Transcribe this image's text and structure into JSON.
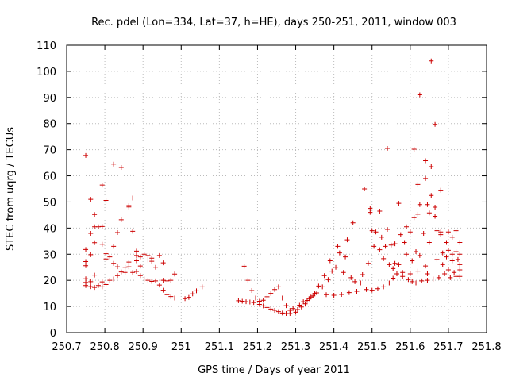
{
  "chart_data": {
    "type": "scatter",
    "title": "Rec. pdel (Lon=334, Lat=37, h=HE), days 250-251, 2011, window 003",
    "xlabel": "GPS time / Days of year 2011",
    "ylabel": "STEC from uqrg / TECUs",
    "xlim": [
      250.7,
      251.8
    ],
    "ylim": [
      0,
      110
    ],
    "x_ticks": [
      250.7,
      250.8,
      250.9,
      251.0,
      251.1,
      251.2,
      251.3,
      251.4,
      251.5,
      251.6,
      251.7,
      251.8
    ],
    "x_tick_labels": [
      "250.7",
      "250.8",
      "250.9",
      "251",
      "251.1",
      "251.2",
      "251.3",
      "251.4",
      "251.5",
      "251.6",
      "251.7",
      "251.8"
    ],
    "y_ticks": [
      0,
      10,
      20,
      30,
      40,
      50,
      60,
      70,
      80,
      90,
      100,
      110
    ],
    "y_tick_labels": [
      "0",
      "10",
      "20",
      "30",
      "40",
      "50",
      "60",
      "70",
      "80",
      "90",
      "100",
      "110"
    ],
    "grid": true,
    "marker": "plus",
    "color": "#cc0000",
    "points": [
      [
        250.75,
        67.8
      ],
      [
        250.75,
        31.8
      ],
      [
        250.75,
        27.2
      ],
      [
        250.75,
        25.6
      ],
      [
        250.75,
        20.6
      ],
      [
        250.75,
        19.2
      ],
      [
        250.75,
        18.0
      ],
      [
        250.763,
        51.0
      ],
      [
        250.763,
        38.0
      ],
      [
        250.763,
        29.8
      ],
      [
        250.763,
        19.5
      ],
      [
        250.763,
        17.6
      ],
      [
        250.773,
        45.2
      ],
      [
        250.773,
        40.5
      ],
      [
        250.773,
        34.4
      ],
      [
        250.773,
        22.0
      ],
      [
        250.773,
        17.3
      ],
      [
        250.783,
        40.5
      ],
      [
        250.783,
        18.0
      ],
      [
        250.793,
        56.5
      ],
      [
        250.793,
        40.6
      ],
      [
        250.793,
        33.8
      ],
      [
        250.793,
        19.4
      ],
      [
        250.793,
        17.5
      ],
      [
        250.803,
        50.6
      ],
      [
        250.803,
        30.2
      ],
      [
        250.803,
        28.2
      ],
      [
        250.803,
        18.4
      ],
      [
        250.813,
        29.0
      ],
      [
        250.813,
        20.0
      ],
      [
        250.823,
        64.5
      ],
      [
        250.823,
        33.0
      ],
      [
        250.823,
        26.5
      ],
      [
        250.823,
        20.5
      ],
      [
        250.833,
        38.3
      ],
      [
        250.833,
        25.2
      ],
      [
        250.833,
        21.8
      ],
      [
        250.843,
        63.2
      ],
      [
        250.843,
        43.2
      ],
      [
        250.843,
        23.2
      ],
      [
        250.853,
        25.0
      ],
      [
        250.853,
        23.0
      ],
      [
        250.863,
        48.6
      ],
      [
        250.863,
        48.1
      ],
      [
        250.863,
        27.0
      ],
      [
        250.863,
        25.2
      ],
      [
        250.873,
        51.5
      ],
      [
        250.873,
        38.8
      ],
      [
        250.873,
        23.0
      ],
      [
        250.883,
        31.2
      ],
      [
        250.883,
        29.5
      ],
      [
        250.883,
        27.5
      ],
      [
        250.883,
        23.4
      ],
      [
        250.893,
        29.0
      ],
      [
        250.893,
        25.5
      ],
      [
        250.893,
        21.8
      ],
      [
        250.903,
        30.0
      ],
      [
        250.903,
        20.5
      ],
      [
        250.913,
        29.5
      ],
      [
        250.913,
        27.8
      ],
      [
        250.913,
        20.0
      ],
      [
        250.923,
        28.5
      ],
      [
        250.923,
        27.3
      ],
      [
        250.923,
        19.6
      ],
      [
        250.933,
        25.0
      ],
      [
        250.933,
        19.8
      ],
      [
        250.943,
        29.5
      ],
      [
        250.943,
        18.2
      ],
      [
        250.953,
        26.7
      ],
      [
        250.953,
        20.0
      ],
      [
        250.953,
        16.2
      ],
      [
        250.963,
        19.8
      ],
      [
        250.963,
        14.5
      ],
      [
        250.973,
        20.0
      ],
      [
        250.973,
        13.8
      ],
      [
        250.983,
        22.4
      ],
      [
        250.983,
        13.2
      ],
      [
        251.01,
        13.0
      ],
      [
        251.02,
        13.5
      ],
      [
        251.03,
        14.8
      ],
      [
        251.04,
        16.0
      ],
      [
        251.055,
        17.5
      ],
      [
        251.15,
        12.2
      ],
      [
        251.16,
        12.0
      ],
      [
        251.17,
        11.8
      ],
      [
        251.18,
        11.7
      ],
      [
        251.19,
        11.5
      ],
      [
        251.165,
        25.4
      ],
      [
        251.175,
        20.0
      ],
      [
        251.185,
        16.1
      ],
      [
        251.195,
        13.2
      ],
      [
        251.205,
        10.8
      ],
      [
        251.205,
        12.0
      ],
      [
        251.215,
        10.2
      ],
      [
        251.215,
        12.4
      ],
      [
        251.225,
        9.6
      ],
      [
        251.225,
        13.7
      ],
      [
        251.235,
        9.0
      ],
      [
        251.235,
        15.0
      ],
      [
        251.245,
        8.5
      ],
      [
        251.245,
        16.5
      ],
      [
        251.255,
        8.0
      ],
      [
        251.255,
        17.5
      ],
      [
        251.265,
        7.5
      ],
      [
        251.265,
        13.2
      ],
      [
        251.275,
        7.3
      ],
      [
        251.275,
        10.3
      ],
      [
        251.285,
        7.3
      ],
      [
        251.285,
        8.5
      ],
      [
        251.293,
        9.2
      ],
      [
        251.3,
        7.8
      ],
      [
        251.305,
        8.8
      ],
      [
        251.31,
        10.5
      ],
      [
        251.315,
        9.8
      ],
      [
        251.32,
        11.8
      ],
      [
        251.325,
        11.0
      ],
      [
        251.33,
        12.3
      ],
      [
        251.335,
        13.0
      ],
      [
        251.34,
        13.6
      ],
      [
        251.345,
        14.0
      ],
      [
        251.35,
        15.0
      ],
      [
        251.355,
        15.2
      ],
      [
        251.36,
        17.8
      ],
      [
        251.37,
        17.5
      ],
      [
        251.375,
        21.8
      ],
      [
        251.38,
        14.5
      ],
      [
        251.385,
        20.3
      ],
      [
        251.39,
        27.5
      ],
      [
        251.395,
        23.5
      ],
      [
        251.4,
        14.3
      ],
      [
        251.405,
        25.0
      ],
      [
        251.41,
        33.0
      ],
      [
        251.415,
        30.5
      ],
      [
        251.42,
        14.6
      ],
      [
        251.425,
        23.0
      ],
      [
        251.43,
        29.0
      ],
      [
        251.435,
        35.5
      ],
      [
        251.44,
        15.3
      ],
      [
        251.445,
        21.0
      ],
      [
        251.45,
        42.0
      ],
      [
        251.455,
        19.5
      ],
      [
        251.46,
        15.8
      ],
      [
        251.47,
        19.0
      ],
      [
        251.475,
        22.2
      ],
      [
        251.48,
        55.0
      ],
      [
        251.485,
        16.5
      ],
      [
        251.49,
        26.5
      ],
      [
        251.495,
        47.5
      ],
      [
        251.495,
        46.0
      ],
      [
        251.5,
        39.0
      ],
      [
        251.5,
        16.2
      ],
      [
        251.505,
        33.0
      ],
      [
        251.51,
        38.5
      ],
      [
        251.515,
        16.8
      ],
      [
        251.52,
        31.7
      ],
      [
        251.52,
        46.5
      ],
      [
        251.525,
        36.5
      ],
      [
        251.53,
        17.5
      ],
      [
        251.53,
        28.3
      ],
      [
        251.535,
        33.0
      ],
      [
        251.54,
        70.5
      ],
      [
        251.54,
        39.5
      ],
      [
        251.545,
        19.0
      ],
      [
        251.545,
        26.0
      ],
      [
        251.55,
        33.5
      ],
      [
        251.555,
        24.5
      ],
      [
        251.555,
        20.8
      ],
      [
        251.56,
        34.0
      ],
      [
        251.56,
        26.5
      ],
      [
        251.565,
        22.5
      ],
      [
        251.57,
        26.0
      ],
      [
        251.57,
        49.5
      ],
      [
        251.575,
        37.5
      ],
      [
        251.58,
        23.0
      ],
      [
        251.58,
        21.5
      ],
      [
        251.585,
        34.5
      ],
      [
        251.59,
        40.5
      ],
      [
        251.59,
        30.0
      ],
      [
        251.595,
        20.3
      ],
      [
        251.6,
        38.5
      ],
      [
        251.6,
        22.5
      ],
      [
        251.605,
        19.5
      ],
      [
        251.605,
        27.5
      ],
      [
        251.61,
        70.2
      ],
      [
        251.61,
        44.0
      ],
      [
        251.615,
        31.0
      ],
      [
        251.615,
        19.0
      ],
      [
        251.62,
        45.3
      ],
      [
        251.62,
        56.7
      ],
      [
        251.62,
        23.5
      ],
      [
        251.625,
        91.0
      ],
      [
        251.625,
        49.0
      ],
      [
        251.625,
        29.5
      ],
      [
        251.63,
        19.8
      ],
      [
        251.635,
        38.0
      ],
      [
        251.64,
        65.8
      ],
      [
        251.64,
        59.0
      ],
      [
        251.64,
        25.5
      ],
      [
        251.645,
        49.0
      ],
      [
        251.645,
        22.5
      ],
      [
        251.645,
        20.0
      ],
      [
        251.65,
        45.8
      ],
      [
        251.65,
        34.5
      ],
      [
        251.655,
        104.0
      ],
      [
        251.655,
        63.5
      ],
      [
        251.655,
        52.5
      ],
      [
        251.66,
        20.5
      ],
      [
        251.665,
        79.7
      ],
      [
        251.665,
        48.0
      ],
      [
        251.665,
        44.5
      ],
      [
        251.67,
        39.0
      ],
      [
        251.67,
        28.0
      ],
      [
        251.675,
        21.0
      ],
      [
        251.68,
        54.5
      ],
      [
        251.68,
        38.5
      ],
      [
        251.68,
        37.5
      ],
      [
        251.685,
        30.5
      ],
      [
        251.685,
        26.0
      ],
      [
        251.69,
        22.5
      ],
      [
        251.695,
        34.5
      ],
      [
        251.695,
        29.0
      ],
      [
        251.7,
        38.5
      ],
      [
        251.7,
        31.5
      ],
      [
        251.7,
        24.0
      ],
      [
        251.705,
        21.0
      ],
      [
        251.71,
        36.5
      ],
      [
        251.71,
        30.0
      ],
      [
        251.71,
        27.5
      ],
      [
        251.715,
        23.0
      ],
      [
        251.72,
        39.0
      ],
      [
        251.72,
        31.0
      ],
      [
        251.72,
        21.5
      ],
      [
        251.725,
        28.0
      ],
      [
        251.73,
        34.5
      ],
      [
        251.73,
        30.0
      ],
      [
        251.73,
        26.0
      ],
      [
        251.73,
        24.0
      ],
      [
        251.73,
        21.5
      ]
    ]
  }
}
